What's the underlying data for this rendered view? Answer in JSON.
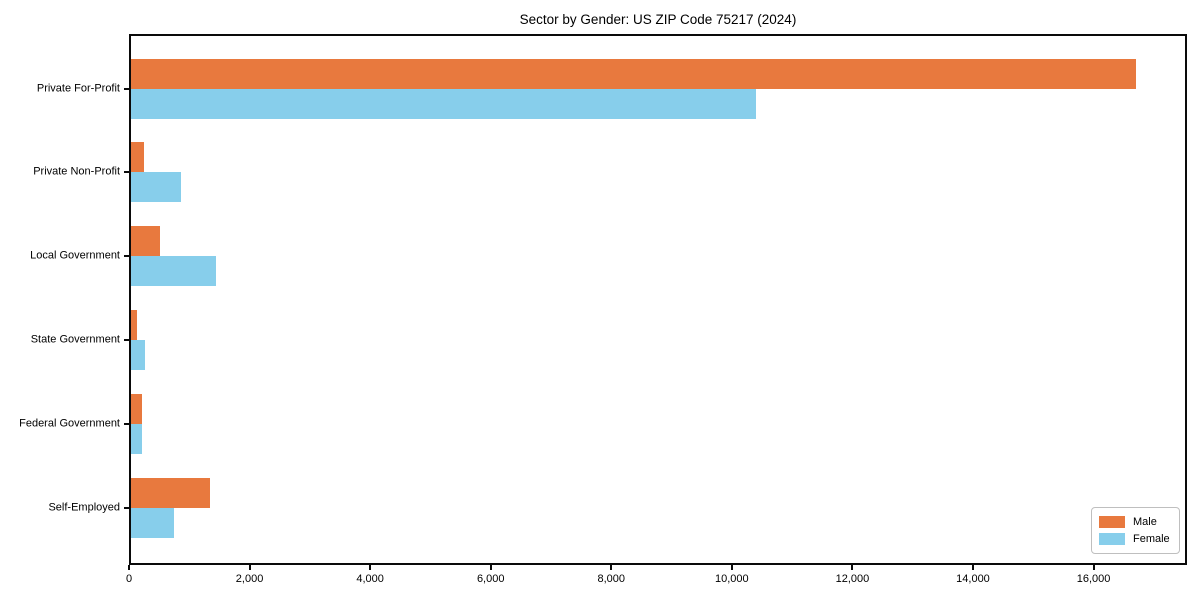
{
  "chart_data": {
    "type": "bar",
    "orientation": "horizontal",
    "title": "Sector by Gender: US ZIP Code 75217 (2024)",
    "categories": [
      "Private For-Profit",
      "Private Non-Profit",
      "Local Government",
      "State Government",
      "Federal Government",
      "Self-Employed"
    ],
    "series": [
      {
        "name": "Male",
        "color": "#e8793e",
        "values": [
          16700,
          250,
          520,
          140,
          220,
          1350
        ]
      },
      {
        "name": "Female",
        "color": "#87ceeb",
        "values": [
          10400,
          870,
          1450,
          260,
          210,
          740
        ]
      }
    ],
    "xlabel": "",
    "ylabel": "",
    "xlim": [
      0,
      17550
    ],
    "xticks": [
      0,
      2000,
      4000,
      6000,
      8000,
      10000,
      12000,
      14000,
      16000
    ],
    "xtick_labels": [
      "0",
      "2,000",
      "4,000",
      "6,000",
      "8,000",
      "10,000",
      "12,000",
      "14,000",
      "16,000"
    ],
    "grid": false,
    "legend_position": "lower right",
    "background_color": "#ffffff",
    "spine_color": "#0a0a0a"
  }
}
